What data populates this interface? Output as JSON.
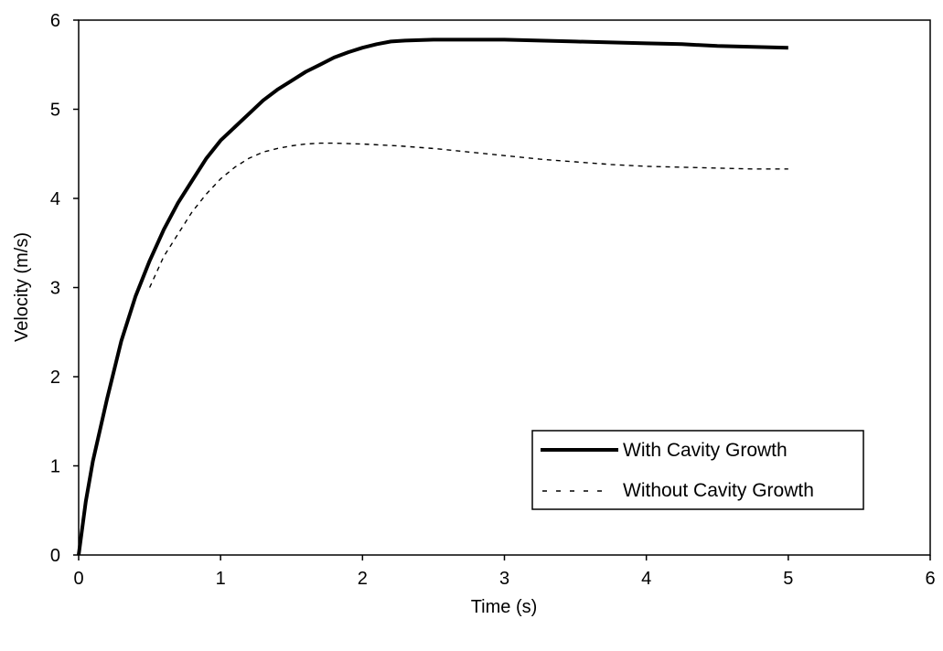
{
  "chart_data": {
    "type": "line",
    "title": "",
    "xlabel": "Time (s)",
    "ylabel": "Velocity (m/s)",
    "xlim": [
      0,
      6
    ],
    "ylim": [
      0,
      6
    ],
    "x_ticks": [
      "0",
      "1",
      "2",
      "3",
      "4",
      "5",
      "6"
    ],
    "y_ticks": [
      "0",
      "1",
      "2",
      "3",
      "4",
      "5",
      "6"
    ],
    "grid": false,
    "legend_position": "lower-right",
    "series": [
      {
        "name": "With Cavity Growth",
        "style": "solid-thick",
        "color": "#000000",
        "points": [
          [
            0,
            0
          ],
          [
            0.05,
            0.6
          ],
          [
            0.1,
            1.05
          ],
          [
            0.2,
            1.75
          ],
          [
            0.3,
            2.4
          ],
          [
            0.4,
            2.9
          ],
          [
            0.5,
            3.3
          ],
          [
            0.6,
            3.65
          ],
          [
            0.7,
            3.95
          ],
          [
            0.8,
            4.2
          ],
          [
            0.9,
            4.45
          ],
          [
            1.0,
            4.65
          ],
          [
            1.1,
            4.8
          ],
          [
            1.2,
            4.95
          ],
          [
            1.3,
            5.1
          ],
          [
            1.4,
            5.22
          ],
          [
            1.5,
            5.32
          ],
          [
            1.6,
            5.42
          ],
          [
            1.7,
            5.5
          ],
          [
            1.8,
            5.58
          ],
          [
            1.9,
            5.64
          ],
          [
            2.0,
            5.69
          ],
          [
            2.1,
            5.73
          ],
          [
            2.2,
            5.76
          ],
          [
            2.3,
            5.77
          ],
          [
            2.5,
            5.78
          ],
          [
            2.75,
            5.78
          ],
          [
            3.0,
            5.78
          ],
          [
            3.25,
            5.77
          ],
          [
            3.5,
            5.76
          ],
          [
            3.75,
            5.75
          ],
          [
            4.0,
            5.74
          ],
          [
            4.25,
            5.73
          ],
          [
            4.5,
            5.71
          ],
          [
            4.75,
            5.7
          ],
          [
            5.0,
            5.69
          ]
        ]
      },
      {
        "name": "Without Cavity Growth",
        "style": "dashed-thin",
        "color": "#000000",
        "points": [
          [
            0.5,
            3.0
          ],
          [
            0.6,
            3.35
          ],
          [
            0.7,
            3.6
          ],
          [
            0.8,
            3.85
          ],
          [
            0.9,
            4.05
          ],
          [
            1.0,
            4.22
          ],
          [
            1.1,
            4.35
          ],
          [
            1.2,
            4.45
          ],
          [
            1.3,
            4.52
          ],
          [
            1.4,
            4.56
          ],
          [
            1.5,
            4.59
          ],
          [
            1.6,
            4.61
          ],
          [
            1.7,
            4.62
          ],
          [
            1.8,
            4.62
          ],
          [
            2.0,
            4.61
          ],
          [
            2.25,
            4.59
          ],
          [
            2.5,
            4.56
          ],
          [
            2.75,
            4.52
          ],
          [
            3.0,
            4.48
          ],
          [
            3.25,
            4.44
          ],
          [
            3.5,
            4.41
          ],
          [
            3.75,
            4.38
          ],
          [
            4.0,
            4.36
          ],
          [
            4.25,
            4.35
          ],
          [
            4.5,
            4.34
          ],
          [
            4.75,
            4.33
          ],
          [
            5.0,
            4.33
          ]
        ]
      }
    ]
  }
}
